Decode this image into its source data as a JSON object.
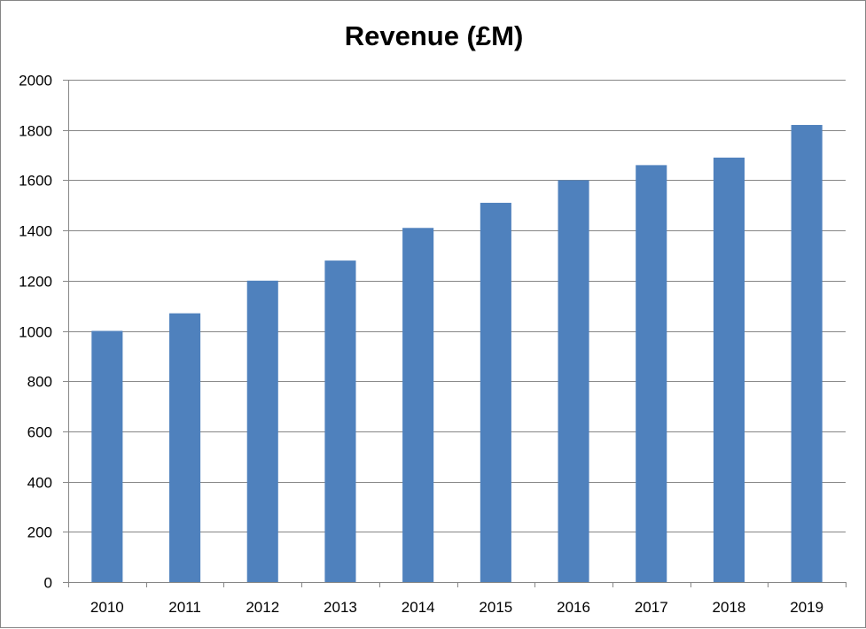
{
  "chart_data": {
    "type": "bar",
    "title": "Revenue (£M)",
    "xlabel": "",
    "ylabel": "",
    "categories": [
      "2010",
      "2011",
      "2012",
      "2013",
      "2014",
      "2015",
      "2016",
      "2017",
      "2018",
      "2019"
    ],
    "values": [
      1000,
      1070,
      1200,
      1280,
      1410,
      1510,
      1600,
      1660,
      1690,
      1820
    ],
    "ylim": [
      0,
      2000
    ],
    "yticks": [
      0,
      200,
      400,
      600,
      800,
      1000,
      1200,
      1400,
      1600,
      1800,
      2000
    ],
    "grid": true,
    "legend": "none",
    "bar_color": "#4F81BD",
    "grid_color": "#868686",
    "axis_color": "#868686"
  }
}
